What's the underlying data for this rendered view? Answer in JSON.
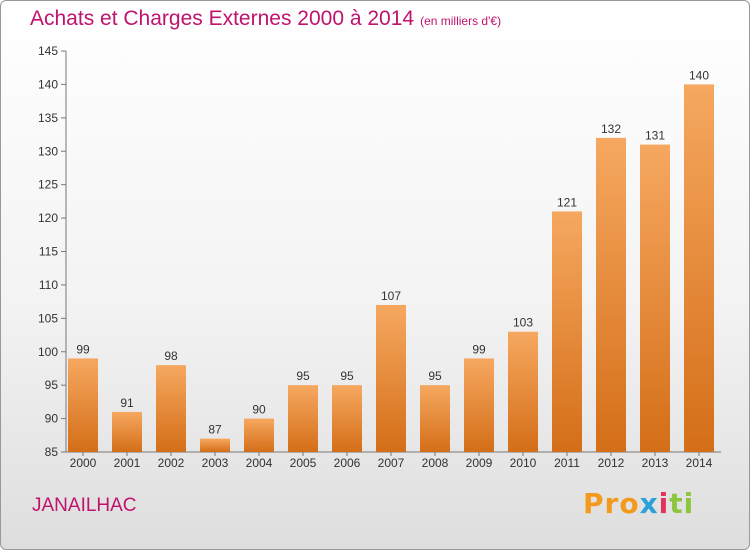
{
  "title": "Achats et Charges Externes 2000 à 2014",
  "unit_note": "(en milliers d'€)",
  "place": "JANAILHAC",
  "logo": {
    "text": "Proxiti",
    "parts": [
      "Pro",
      "x",
      "i",
      "ti"
    ]
  },
  "colors": {
    "title": "#c0136e",
    "bar_light": "#f6a860",
    "bar_dark": "#d46e18"
  },
  "chart_data": {
    "type": "bar",
    "title": "Achats et Charges Externes 2000 à 2014",
    "xlabel": "",
    "ylabel": "",
    "categories": [
      "2000",
      "2001",
      "2002",
      "2003",
      "2004",
      "2005",
      "2006",
      "2007",
      "2008",
      "2009",
      "2010",
      "2011",
      "2012",
      "2013",
      "2014"
    ],
    "values": [
      99,
      91,
      98,
      87,
      90,
      95,
      95,
      107,
      95,
      99,
      103,
      121,
      132,
      131,
      140
    ],
    "ylim": [
      85,
      145
    ],
    "yticks": [
      85,
      90,
      95,
      100,
      105,
      110,
      115,
      120,
      125,
      130,
      135,
      140,
      145
    ],
    "grid": false,
    "legend": "none"
  }
}
